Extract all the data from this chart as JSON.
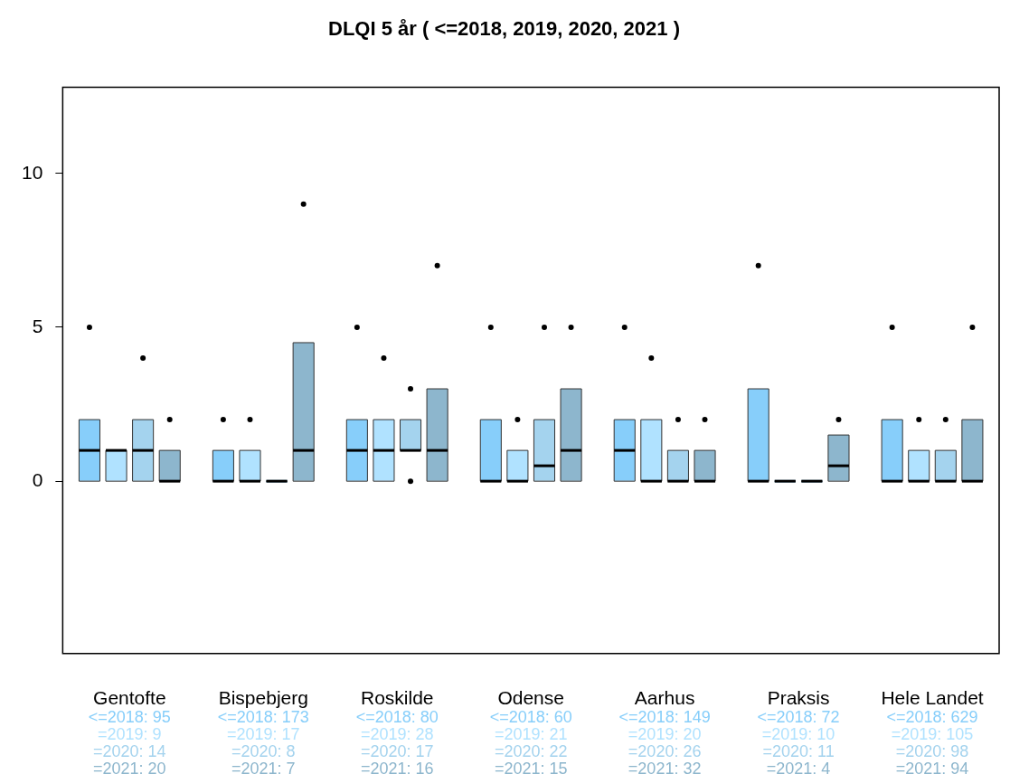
{
  "chart_data": {
    "type": "box",
    "title": "DLQI 5 år ( <=2018, 2019, 2020, 2021 )",
    "categories": [
      "Gentofte",
      "Bispebjerg",
      "Roskilde",
      "Odense",
      "Aarhus",
      "Praksis",
      "Hele Landet"
    ],
    "ylim": [
      -5.6,
      12.8
    ],
    "yticks": [
      0,
      5,
      10
    ],
    "grid": false,
    "legend": false,
    "series": [
      {
        "color": "#87cefa",
        "boxes": [
          {
            "low": 0,
            "q1": 0,
            "median": 1,
            "q3": 2,
            "high": 2,
            "outliers": [
              5
            ]
          },
          {
            "low": 0,
            "q1": 0,
            "median": 0,
            "q3": 1,
            "high": 1,
            "outliers": [
              2
            ]
          },
          {
            "low": 0,
            "q1": 0,
            "median": 1,
            "q3": 2,
            "high": 2,
            "outliers": [
              5
            ]
          },
          {
            "low": 0,
            "q1": 0,
            "median": 0,
            "q3": 2,
            "high": 2,
            "outliers": [
              5
            ]
          },
          {
            "low": 0,
            "q1": 0,
            "median": 1,
            "q3": 2,
            "high": 2,
            "outliers": [
              5
            ]
          },
          {
            "low": 0,
            "q1": 0,
            "median": 0,
            "q3": 3,
            "high": 3,
            "outliers": [
              7
            ]
          },
          {
            "low": 0,
            "q1": 0,
            "median": 0,
            "q3": 2,
            "high": 2,
            "outliers": [
              5
            ]
          }
        ]
      },
      {
        "color": "#b0e2ff",
        "boxes": [
          {
            "low": 0,
            "q1": 0,
            "median": 1,
            "q3": 1,
            "high": 1
          },
          {
            "low": 0,
            "q1": 0,
            "median": 0,
            "q3": 1,
            "high": 1,
            "outliers": [
              2
            ]
          },
          {
            "low": 0,
            "q1": 0,
            "median": 1,
            "q3": 2,
            "high": 2,
            "outliers": [
              4
            ]
          },
          {
            "low": 0,
            "q1": 0,
            "median": 0,
            "q3": 1,
            "high": 1,
            "outliers": [
              2
            ]
          },
          {
            "low": 0,
            "q1": 0,
            "median": 0,
            "q3": 2,
            "high": 2,
            "outliers": [
              4
            ]
          },
          {
            "low": 0,
            "q1": 0,
            "median": 0,
            "q3": 0,
            "high": 0
          },
          {
            "low": 0,
            "q1": 0,
            "median": 0,
            "q3": 1,
            "high": 1,
            "outliers": [
              2
            ]
          }
        ]
      },
      {
        "color": "#a4d3ee",
        "boxes": [
          {
            "low": 0,
            "q1": 0,
            "median": 1,
            "q3": 2,
            "high": 2,
            "outliers": [
              4
            ]
          },
          {
            "low": 0,
            "q1": 0,
            "median": 0,
            "q3": 0,
            "high": 0
          },
          {
            "low": 1,
            "q1": 1,
            "median": 1,
            "q3": 2,
            "high": 2,
            "outliers": [
              3,
              0
            ]
          },
          {
            "low": 0,
            "q1": 0,
            "median": 0.5,
            "q3": 2,
            "high": 2,
            "outliers": [
              5
            ]
          },
          {
            "low": 0,
            "q1": 0,
            "median": 0,
            "q3": 1,
            "high": 1,
            "outliers": [
              2
            ]
          },
          {
            "low": 0,
            "q1": 0,
            "median": 0,
            "q3": 0,
            "high": 0
          },
          {
            "low": 0,
            "q1": 0,
            "median": 0,
            "q3": 1,
            "high": 1,
            "outliers": [
              2
            ]
          }
        ]
      },
      {
        "color": "#8db6cd",
        "boxes": [
          {
            "low": 0,
            "q1": 0,
            "median": 0,
            "q3": 1,
            "high": 1,
            "outliers": [
              2
            ]
          },
          {
            "low": 0,
            "q1": 0,
            "median": 1,
            "q3": 4.5,
            "high": 4.5,
            "outliers": [
              9
            ]
          },
          {
            "low": 0,
            "q1": 0,
            "median": 1,
            "q3": 3,
            "high": 3,
            "outliers": [
              7
            ]
          },
          {
            "low": 0,
            "q1": 0,
            "median": 1,
            "q3": 3,
            "high": 3,
            "outliers": [
              5
            ]
          },
          {
            "low": 0,
            "q1": 0,
            "median": 0,
            "q3": 1,
            "high": 1,
            "outliers": [
              2
            ]
          },
          {
            "low": 0,
            "q1": 0,
            "median": 0.5,
            "q3": 1.5,
            "high": 1.5,
            "outliers": [
              2
            ]
          },
          {
            "low": 0,
            "q1": 0,
            "median": 0,
            "q3": 2,
            "high": 2,
            "outliers": [
              5
            ]
          }
        ]
      }
    ],
    "annotations": [
      "<=2018: 95",
      "=2019: 9",
      "=2020: 14",
      "=2021: 20",
      "<=2018: 173",
      "=2019: 17",
      "=2020: 8",
      "=2021: 7",
      "<=2018: 80",
      "=2019: 28",
      "=2020: 17",
      "=2021: 16",
      "<=2018: 60",
      "=2019: 21",
      "=2020: 22",
      "=2021: 15",
      "<=2018: 149",
      "=2019: 20",
      "=2020: 26",
      "=2021: 32",
      "<=2018: 72",
      "=2019: 10",
      "=2020: 11",
      "=2021: 4",
      "<=2018: 629",
      "=2019: 105",
      "=2020: 98",
      "=2021: 94"
    ]
  }
}
